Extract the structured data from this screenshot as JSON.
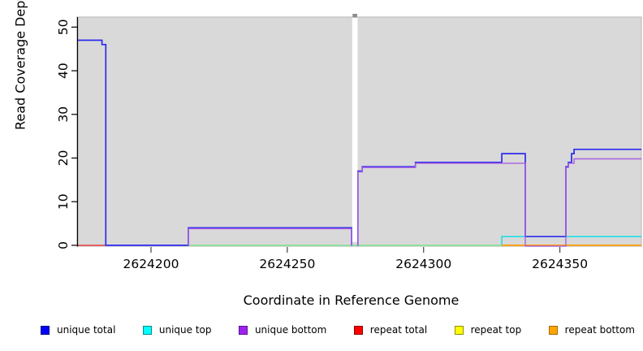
{
  "chart_data": {
    "type": "line",
    "subtype": "step-coverage",
    "title": "",
    "xlabel": "Coordinate in Reference Genome",
    "ylabel": "Read Coverage Depth",
    "x_range": [
      2624172.9,
      2624379.9
    ],
    "y_range": [
      -0.2,
      52.3
    ],
    "x_ticks": [
      {
        "value": 2624200,
        "label": "2624200"
      },
      {
        "value": 2624250,
        "label": "2624250"
      },
      {
        "value": 2624300,
        "label": "2624300"
      },
      {
        "value": 2624350,
        "label": "2624350"
      }
    ],
    "y_ticks": [
      {
        "value": 0,
        "label": "0"
      },
      {
        "value": 10,
        "label": "10"
      },
      {
        "value": 20,
        "label": "20"
      },
      {
        "value": 30,
        "label": "30"
      },
      {
        "value": 40,
        "label": "40"
      },
      {
        "value": 50,
        "label": "50"
      }
    ],
    "grid": false,
    "plot_bg": "#d9d9d9",
    "plot_border": "#c2c2c2",
    "gap_region": {
      "x_start": 2624273.8,
      "x_end": 2624275.8,
      "note": "white masked band, no data",
      "stub_color": "#8e8e8e"
    },
    "series": [
      {
        "name": "repeat-total",
        "label": "repeat total",
        "color": "#ee3333",
        "width": 1.4,
        "segments": [
          [
            [
              2624172.9,
              0
            ],
            [
              2624183.4,
              0
            ]
          ]
        ]
      },
      {
        "name": "unique-top",
        "label": "unique top",
        "color": "#00e0e6",
        "width": 1.4,
        "segments": [
          [
            [
              2624213.7,
              0
            ],
            [
              2624328.7,
              0
            ],
            [
              2624328.7,
              2
            ],
            [
              2624379.9,
              2
            ]
          ]
        ]
      },
      {
        "name": "repeat-top",
        "label": "repeat top",
        "color": "#e8e84a",
        "width": 1.4,
        "opacity": 0.6,
        "segments": [
          [
            [
              2624213.7,
              0
            ],
            [
              2624328.7,
              0
            ]
          ]
        ]
      },
      {
        "name": "repeat-bottom",
        "label": "repeat bottom",
        "color": "#ff9d00",
        "width": 1.7,
        "segments": [
          [
            [
              2624328.7,
              0
            ],
            [
              2624379.9,
              0
            ]
          ]
        ]
      },
      {
        "name": "unique-total",
        "label": "unique total",
        "color": "#2b2bef",
        "width": 1.7,
        "segments": [
          [
            [
              2624172.9,
              47
            ],
            [
              2624182,
              47
            ],
            [
              2624182,
              46
            ],
            [
              2624183.4,
              46
            ],
            [
              2624183.4,
              0
            ],
            [
              2624213.7,
              0
            ],
            [
              2624213.7,
              4
            ],
            [
              2624273.6,
              4
            ],
            [
              2624273.6,
              0
            ]
          ],
          [
            [
              2624275.9,
              0
            ],
            [
              2624275.9,
              17
            ],
            [
              2624277.5,
              17
            ],
            [
              2624277.5,
              18
            ],
            [
              2624297,
              18
            ],
            [
              2624297,
              19
            ],
            [
              2624328.7,
              19
            ],
            [
              2624328.7,
              21
            ],
            [
              2624337.3,
              21
            ],
            [
              2624337.3,
              2
            ],
            [
              2624352.2,
              2
            ],
            [
              2624352.2,
              18
            ],
            [
              2624353.1,
              18
            ],
            [
              2624353.1,
              19
            ],
            [
              2624354.3,
              19
            ],
            [
              2624354.3,
              21
            ],
            [
              2624355.2,
              21
            ],
            [
              2624355.2,
              22
            ],
            [
              2624379.9,
              22
            ]
          ]
        ]
      },
      {
        "name": "unique-bottom",
        "label": "unique bottom",
        "color": "#a95fe0",
        "width": 1.4,
        "dy": 1.0,
        "segments": [
          [
            [
              2624213.7,
              0
            ],
            [
              2624213.7,
              4
            ],
            [
              2624273.6,
              4
            ],
            [
              2624273.6,
              0
            ]
          ],
          [
            [
              2624275.9,
              0
            ],
            [
              2624275.9,
              17
            ],
            [
              2624277.5,
              17
            ],
            [
              2624277.5,
              18
            ],
            [
              2624297,
              18
            ],
            [
              2624297,
              19
            ],
            [
              2624337.3,
              19
            ],
            [
              2624337.3,
              0
            ],
            [
              2624352.2,
              0
            ],
            [
              2624352.2,
              18
            ],
            [
              2624353.1,
              18
            ],
            [
              2624353.1,
              19
            ],
            [
              2624355.2,
              19
            ],
            [
              2624355.2,
              20
            ],
            [
              2624379.9,
              20
            ]
          ]
        ]
      }
    ],
    "legend": {
      "position": "bottom",
      "items": [
        {
          "label": "unique total",
          "color": "#0000ff",
          "border": "#00008b"
        },
        {
          "label": "unique top",
          "color": "#00ffff",
          "border": "#008b8b"
        },
        {
          "label": "unique bottom",
          "color": "#a020f0",
          "border": "#5e1291"
        },
        {
          "label": "repeat total",
          "color": "#ff0000",
          "border": "#8b0000"
        },
        {
          "label": "repeat top",
          "color": "#ffff00",
          "border": "#8f8f00"
        },
        {
          "label": "repeat bottom",
          "color": "#ffa500",
          "border": "#a66a00"
        }
      ]
    }
  }
}
